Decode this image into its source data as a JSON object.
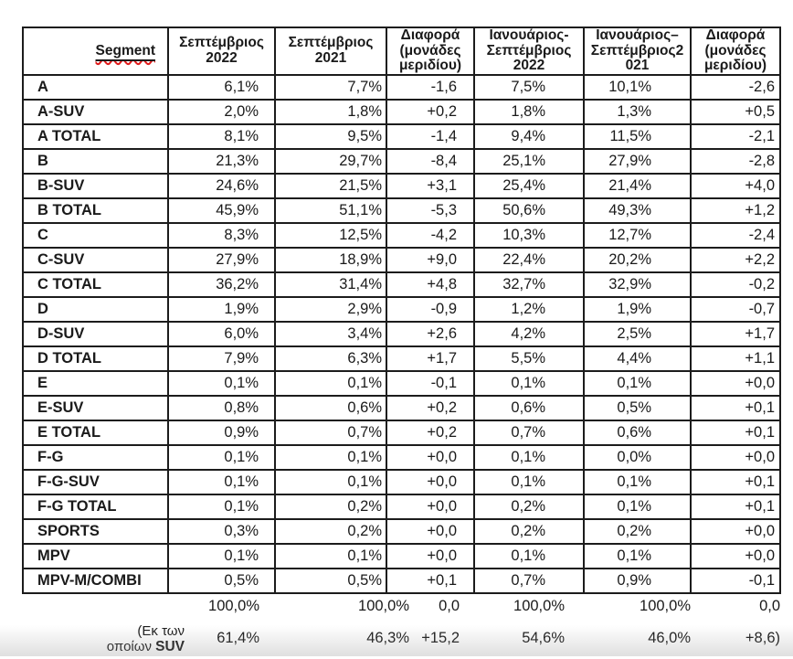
{
  "colors": {
    "text": "#1a1a1a",
    "table_border": "#1c1c1c",
    "spellcheck_underline": "#e01b1b",
    "background": "#ffffff"
  },
  "table": {
    "name": "segment-market-share-table",
    "columns": [
      {
        "id": "segment",
        "lines": [
          "Segment"
        ],
        "spellcheck": true
      },
      {
        "id": "september-2022",
        "lines": [
          "Σεπτέμβριος",
          "2022"
        ]
      },
      {
        "id": "september-2021",
        "lines": [
          "Σεπτέμβριος",
          "2021"
        ]
      },
      {
        "id": "diff-month",
        "lines": [
          "Διαφορά",
          "(μονάδες",
          "μεριδίου)"
        ]
      },
      {
        "id": "january-september-2022",
        "lines": [
          "Ιανουάριος-",
          "Σεπτέμβριος",
          "2022"
        ]
      },
      {
        "id": "january-september-2021",
        "lines": [
          "Ιανουάριος–",
          "Σεπτέμβριος2",
          "021"
        ]
      },
      {
        "id": "diff-ytd",
        "lines": [
          "Διαφορά",
          "(μονάδες",
          "μεριδίου)"
        ]
      }
    ],
    "rows": [
      {
        "segment": "A",
        "values": [
          "6,1%",
          "7,7%",
          "-1,6",
          "7,5%",
          "10,1%",
          "-2,6"
        ]
      },
      {
        "segment": "A-SUV",
        "values": [
          "2,0%",
          "1,8%",
          "+0,2",
          "1,8%",
          "1,3%",
          "+0,5"
        ]
      },
      {
        "segment": "A TOTAL",
        "values": [
          "8,1%",
          "9,5%",
          "-1,4",
          "9,4%",
          "11,5%",
          "-2,1"
        ]
      },
      {
        "segment": "B",
        "values": [
          "21,3%",
          "29,7%",
          "-8,4",
          "25,1%",
          "27,9%",
          "-2,8"
        ]
      },
      {
        "segment": "B-SUV",
        "values": [
          "24,6%",
          "21,5%",
          "+3,1",
          "25,4%",
          "21,4%",
          "+4,0"
        ]
      },
      {
        "segment": "B TOTAL",
        "values": [
          "45,9%",
          "51,1%",
          "-5,3",
          "50,6%",
          "49,3%",
          "+1,2"
        ]
      },
      {
        "segment": "C",
        "values": [
          "8,3%",
          "12,5%",
          "-4,2",
          "10,3%",
          "12,7%",
          "-2,4"
        ]
      },
      {
        "segment": "C-SUV",
        "values": [
          "27,9%",
          "18,9%",
          "+9,0",
          "22,4%",
          "20,2%",
          "+2,2"
        ]
      },
      {
        "segment": "C TOTAL",
        "values": [
          "36,2%",
          "31,4%",
          "+4,8",
          "32,7%",
          "32,9%",
          "-0,2"
        ]
      },
      {
        "segment": "D",
        "values": [
          "1,9%",
          "2,9%",
          "-0,9",
          "1,2%",
          "1,9%",
          "-0,7"
        ]
      },
      {
        "segment": "D-SUV",
        "values": [
          "6,0%",
          "3,4%",
          "+2,6",
          "4,2%",
          "2,5%",
          "+1,7"
        ]
      },
      {
        "segment": "D TOTAL",
        "values": [
          "7,9%",
          "6,3%",
          "+1,7",
          "5,5%",
          "4,4%",
          "+1,1"
        ]
      },
      {
        "segment": "E",
        "values": [
          "0,1%",
          "0,1%",
          "-0,1",
          "0,1%",
          "0,1%",
          "+0,0"
        ]
      },
      {
        "segment": "E-SUV",
        "values": [
          "0,8%",
          "0,6%",
          "+0,2",
          "0,6%",
          "0,5%",
          "+0,1"
        ]
      },
      {
        "segment": "E TOTAL",
        "values": [
          "0,9%",
          "0,7%",
          "+0,2",
          "0,7%",
          "0,6%",
          "+0,1"
        ]
      },
      {
        "segment": "F-G",
        "values": [
          "0,1%",
          "0,1%",
          "+0,0",
          "0,1%",
          "0,0%",
          "+0,0"
        ]
      },
      {
        "segment": "F-G-SUV",
        "values": [
          "0,1%",
          "0,1%",
          "+0,0",
          "0,1%",
          "0,1%",
          "+0,1"
        ]
      },
      {
        "segment": "F-G TOTAL",
        "values": [
          "0,1%",
          "0,2%",
          "+0,0",
          "0,2%",
          "0,1%",
          "+0,1"
        ]
      },
      {
        "segment": "SPORTS",
        "values": [
          "0,3%",
          "0,2%",
          "+0,0",
          "0,2%",
          "0,2%",
          "+0,0"
        ]
      },
      {
        "segment": "MPV",
        "values": [
          "0,1%",
          "0,1%",
          "+0,0",
          "0,1%",
          "0,1%",
          "+0,0"
        ]
      },
      {
        "segment": "MPV-M/COMBI",
        "values": [
          "0,5%",
          "0,5%",
          "+0,1",
          "0,7%",
          "0,9%",
          "-0,1"
        ]
      }
    ],
    "footer_rows": [
      {
        "values": [
          "100,0%",
          "100,0%",
          "0,0",
          "100,0%",
          "100,0%",
          "0,0"
        ]
      },
      {
        "label": {
          "line1": "(Εκ των",
          "line2_regular": "οποίων ",
          "line2_bold": "SUV"
        },
        "values": [
          "61,4%",
          "46,3%",
          "+15,2",
          "54,6%",
          "46,0%",
          "+8,6)"
        ]
      }
    ]
  }
}
